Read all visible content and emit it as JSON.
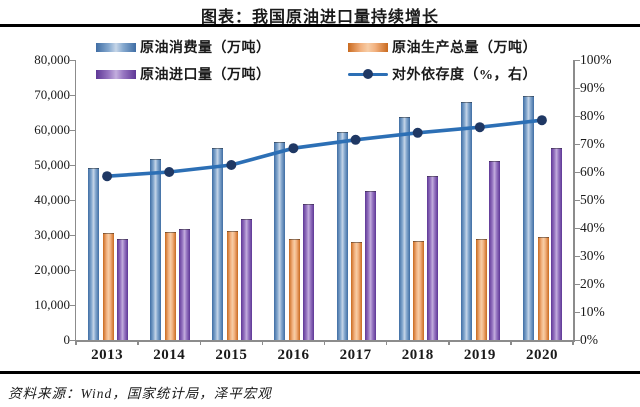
{
  "title": "图表：我国原油进口量持续增长",
  "source": "资料来源：Wind，国家统计局，泽平宏观",
  "legend": {
    "items": [
      {
        "label": "原油消费量（万吨）",
        "type": "bar",
        "edge": "#3f6da4",
        "mid": "#86a9cf",
        "light": "#c6d6e8"
      },
      {
        "label": "原油生产总量（万吨）",
        "type": "bar",
        "edge": "#c96a1f",
        "mid": "#f2b17f",
        "light": "#f7cda6"
      },
      {
        "label": "原油进口量（万吨）",
        "type": "bar",
        "edge": "#5e3796",
        "mid": "#9877c2",
        "light": "#c3aede"
      },
      {
        "label": "对外依存度（%，右）",
        "type": "line",
        "line_color": "#2c6fb5",
        "marker_color": "#1f3864"
      }
    ]
  },
  "axes": {
    "left_ticks": [
      "80,000",
      "70,000",
      "60,000",
      "50,000",
      "40,000",
      "30,000",
      "20,000",
      "10,000",
      "0"
    ],
    "right_ticks": [
      "100%",
      "90%",
      "80%",
      "70%",
      "60%",
      "50%",
      "40%",
      "30%",
      "20%",
      "10%",
      "0%"
    ]
  },
  "chart_data": {
    "type": "bar",
    "title": "图表：我国原油进口量持续增长",
    "categories": [
      "2013",
      "2014",
      "2015",
      "2016",
      "2017",
      "2018",
      "2019",
      "2020"
    ],
    "series": [
      {
        "name": "原油消费量（万吨）",
        "type": "bar",
        "axis": "left",
        "values": [
          49200,
          51700,
          54800,
          56700,
          59500,
          63600,
          68000,
          69800
        ]
      },
      {
        "name": "原油生产总量（万吨）",
        "type": "bar",
        "axis": "left",
        "values": [
          30700,
          30900,
          31200,
          29000,
          27900,
          28300,
          28800,
          29300
        ]
      },
      {
        "name": "原油进口量（万吨）",
        "type": "bar",
        "axis": "left",
        "values": [
          28800,
          31600,
          34500,
          38800,
          42600,
          46900,
          51100,
          54900
        ]
      },
      {
        "name": "对外依存度（%，右）",
        "type": "line",
        "axis": "right",
        "values": [
          58.5,
          60,
          62.5,
          68.5,
          71.5,
          74,
          76,
          78.5
        ]
      }
    ],
    "left_ylim": [
      0,
      80000
    ],
    "right_ylim": [
      0,
      100
    ],
    "grid": false,
    "legend_position": "top"
  }
}
